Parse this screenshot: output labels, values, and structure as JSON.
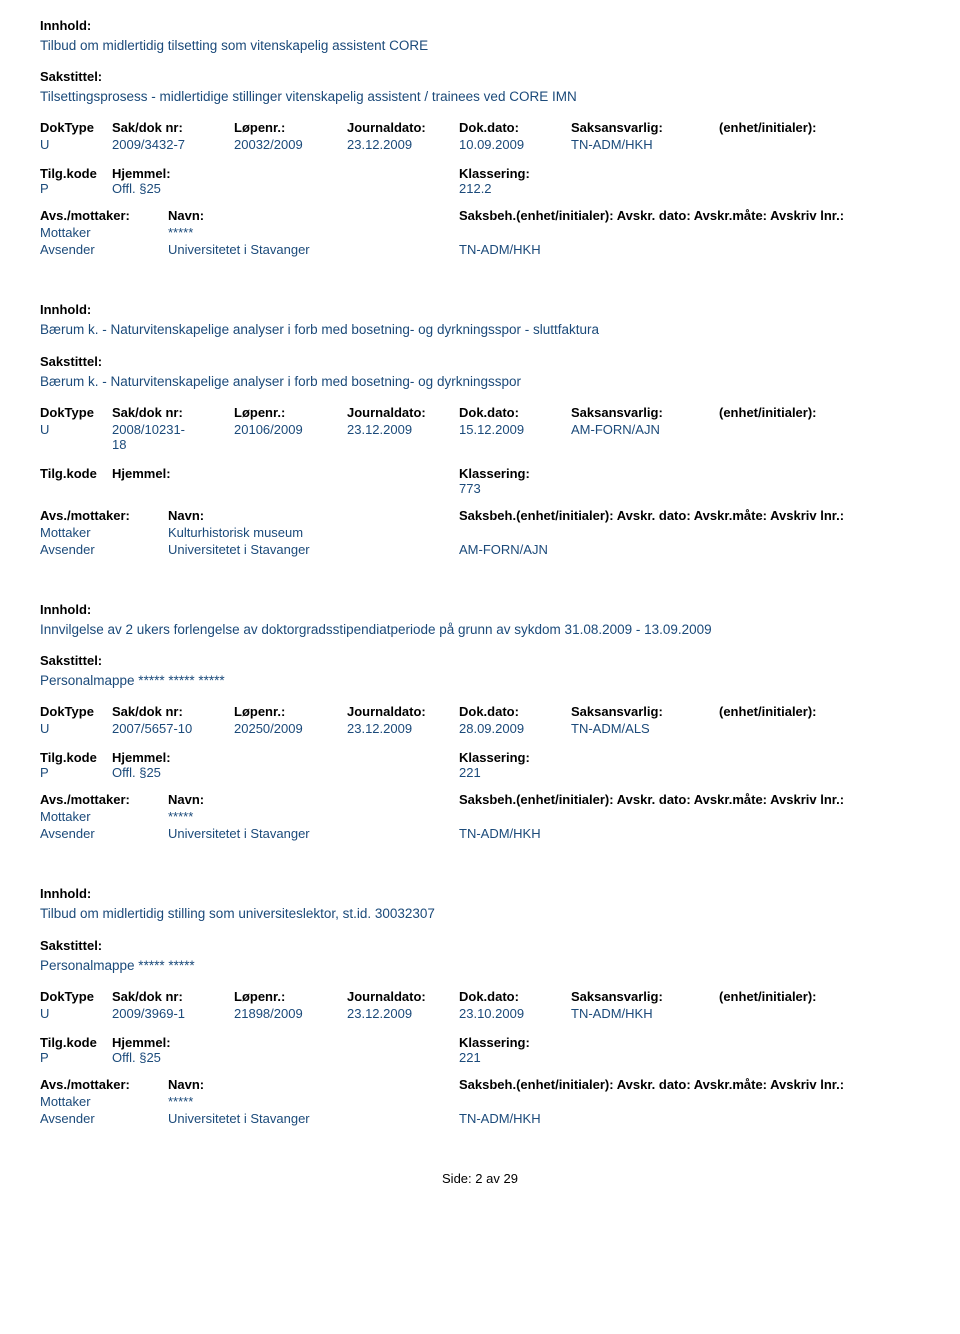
{
  "labels": {
    "innhold": "Innhold:",
    "sakstittel": "Sakstittel:",
    "doktype": "DokType",
    "sakdok": "Sak/dok nr:",
    "lopenr": "Løpenr.:",
    "journaldato": "Journaldato:",
    "dokdato": "Dok.dato:",
    "saksansvarlig": "Saksansvarlig:",
    "enhet": "(enhet/initialer):",
    "tilgkode": "Tilg.kode",
    "hjemmel": "Hjemmel:",
    "klassering": "Klassering:",
    "avsmottaker": "Avs./mottaker:",
    "navn": "Navn:",
    "saksbeh": "Saksbeh.(enhet/initialer): Avskr. dato:  Avskr.måte:  Avskriv lnr.:",
    "side": "Side:",
    "av": "av"
  },
  "footer": {
    "page": "2",
    "total": "29"
  },
  "records": [
    {
      "innhold": "Tilbud om midlertidig tilsetting som vitenskapelig assistent CORE",
      "sakstittel": "Tilsettingsprosess - midlertidige stillinger vitenskapelig assistent / trainees ved CORE IMN",
      "doktype": "U",
      "sakdok": "2009/3432-7",
      "lopenr": "20032/2009",
      "jdato": "23.12.2009",
      "ddato": "10.09.2009",
      "saks": "TN-ADM/HKH",
      "tilgkode": "P",
      "hjemmel": "Offl. §25",
      "klassering": "212.2",
      "parties": [
        {
          "role": "Mottaker",
          "name": "*****",
          "extra": ""
        },
        {
          "role": "Avsender",
          "name": "Universitetet i Stavanger",
          "extra": "TN-ADM/HKH"
        }
      ]
    },
    {
      "innhold": "Bærum k. - Naturvitenskapelige analyser i forb med bosetning- og dyrkningsspor - sluttfaktura",
      "sakstittel": "Bærum k. - Naturvitenskapelige analyser i forb med bosetning- og dyrkningsspor",
      "doktype": "U",
      "sakdok": "2008/10231-18",
      "lopenr": "20106/2009",
      "jdato": "23.12.2009",
      "ddato": "15.12.2009",
      "saks": "AM-FORN/AJN",
      "tilgkode": "",
      "hjemmel": "",
      "klassering": "773",
      "parties": [
        {
          "role": "Mottaker",
          "name": "Kulturhistorisk museum",
          "extra": ""
        },
        {
          "role": "Avsender",
          "name": "Universitetet i Stavanger",
          "extra": "AM-FORN/AJN"
        }
      ]
    },
    {
      "innhold": "Innvilgelse av 2 ukers forlengelse av doktorgradsstipendiatperiode på grunn av sykdom 31.08.2009 - 13.09.2009",
      "sakstittel": "Personalmappe ***** ***** *****",
      "doktype": "U",
      "sakdok": "2007/5657-10",
      "lopenr": "20250/2009",
      "jdato": "23.12.2009",
      "ddato": "28.09.2009",
      "saks": "TN-ADM/ALS",
      "tilgkode": "P",
      "hjemmel": "Offl. §25",
      "klassering": "221",
      "parties": [
        {
          "role": "Mottaker",
          "name": "*****",
          "extra": ""
        },
        {
          "role": "Avsender",
          "name": "Universitetet i Stavanger",
          "extra": "TN-ADM/HKH"
        }
      ]
    },
    {
      "innhold": "Tilbud om midlertidig stilling som universiteslektor, st.id. 30032307",
      "sakstittel": "Personalmappe ***** *****",
      "doktype": "U",
      "sakdok": "2009/3969-1",
      "lopenr": "21898/2009",
      "jdato": "23.12.2009",
      "ddato": "23.10.2009",
      "saks": "TN-ADM/HKH",
      "tilgkode": "P",
      "hjemmel": "Offl. §25",
      "klassering": "221",
      "parties": [
        {
          "role": "Mottaker",
          "name": "*****",
          "extra": ""
        },
        {
          "role": "Avsender",
          "name": "Universitetet i Stavanger",
          "extra": "TN-ADM/HKH"
        }
      ]
    }
  ]
}
